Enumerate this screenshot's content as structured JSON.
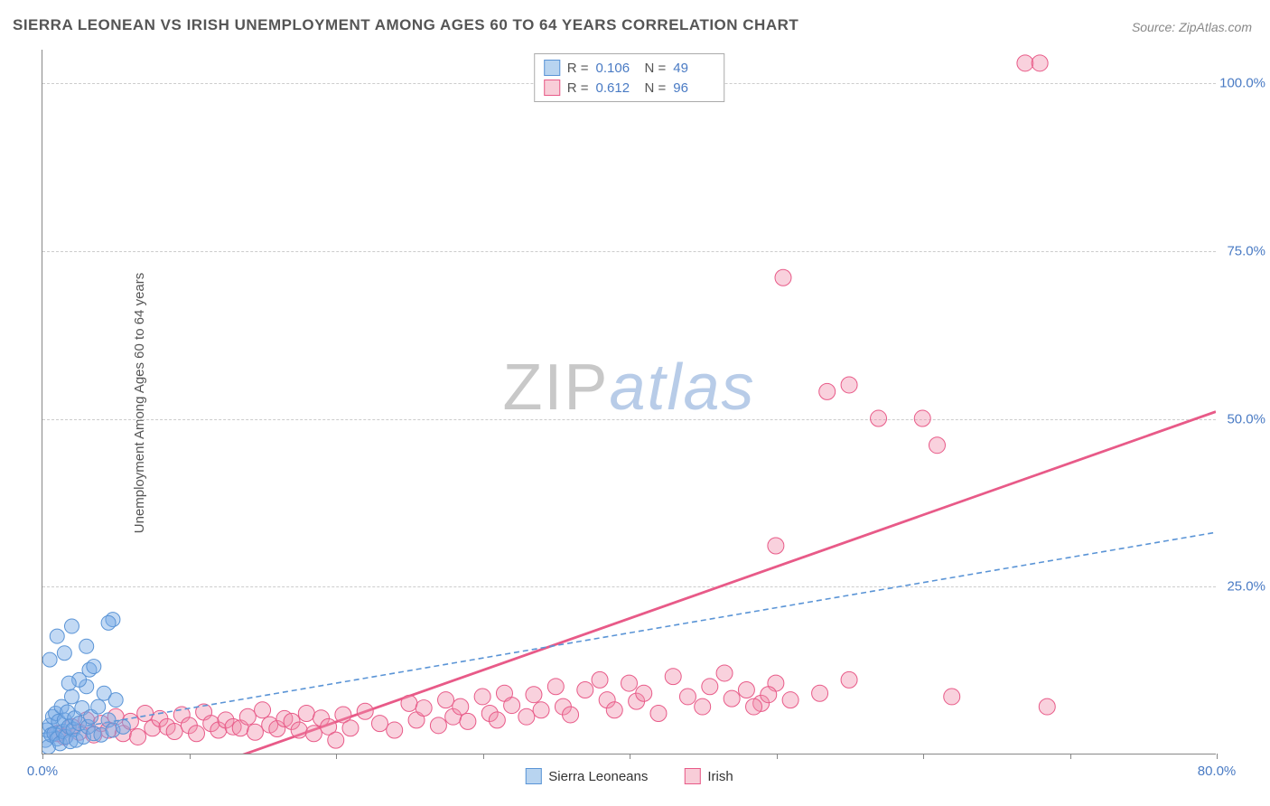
{
  "title": "SIERRA LEONEAN VS IRISH UNEMPLOYMENT AMONG AGES 60 TO 64 YEARS CORRELATION CHART",
  "source": "Source: ZipAtlas.com",
  "ylabel": "Unemployment Among Ages 60 to 64 years",
  "watermark": {
    "part1": "ZIP",
    "part2": "atlas"
  },
  "axes": {
    "xlim": [
      0,
      80
    ],
    "ylim": [
      0,
      105
    ],
    "yticks": [
      25,
      50,
      75,
      100
    ],
    "ytick_labels": [
      "25.0%",
      "50.0%",
      "75.0%",
      "100.0%"
    ],
    "xticks": [
      0,
      10,
      20,
      30,
      40,
      50,
      60,
      70,
      80
    ],
    "xtick_labels_shown": {
      "0": "0.0%",
      "80": "80.0%"
    },
    "grid_color": "#cccccc",
    "tick_label_color": "#4a7bc4"
  },
  "series": {
    "sierra": {
      "label": "Sierra Leoneans",
      "color_fill": "rgba(120,170,230,0.45)",
      "color_stroke": "#5a94d6",
      "swatch_fill": "#b8d4f0",
      "swatch_border": "#5a94d6",
      "R": "0.106",
      "N": "49",
      "marker_r": 8,
      "line": {
        "x1": 0,
        "y1": 3.0,
        "x2": 80,
        "y2": 33.0,
        "dash": "6,4",
        "width": 1.6
      },
      "points": [
        [
          0.2,
          2.0
        ],
        [
          0.3,
          3.5
        ],
        [
          0.4,
          1.0
        ],
        [
          0.5,
          4.2
        ],
        [
          0.6,
          2.8
        ],
        [
          0.7,
          5.5
        ],
        [
          0.8,
          3.0
        ],
        [
          0.9,
          6.0
        ],
        [
          1.0,
          2.2
        ],
        [
          1.1,
          4.8
        ],
        [
          1.2,
          1.5
        ],
        [
          1.3,
          7.0
        ],
        [
          1.4,
          3.3
        ],
        [
          1.5,
          5.0
        ],
        [
          1.6,
          2.5
        ],
        [
          1.7,
          6.2
        ],
        [
          1.8,
          4.0
        ],
        [
          1.9,
          1.8
        ],
        [
          2.0,
          8.5
        ],
        [
          2.1,
          3.6
        ],
        [
          2.2,
          5.3
        ],
        [
          2.3,
          2.0
        ],
        [
          2.5,
          4.5
        ],
        [
          2.7,
          6.8
        ],
        [
          2.8,
          2.5
        ],
        [
          3.0,
          10.0
        ],
        [
          3.1,
          4.0
        ],
        [
          3.2,
          12.5
        ],
        [
          3.3,
          5.5
        ],
        [
          3.5,
          3.0
        ],
        [
          3.8,
          7.0
        ],
        [
          4.0,
          2.8
        ],
        [
          4.2,
          9.0
        ],
        [
          4.5,
          5.0
        ],
        [
          4.8,
          3.5
        ],
        [
          5.0,
          8.0
        ],
        [
          5.5,
          4.0
        ],
        [
          0.5,
          14.0
        ],
        [
          1.0,
          17.5
        ],
        [
          1.5,
          15.0
        ],
        [
          2.0,
          19.0
        ],
        [
          2.5,
          11.0
        ],
        [
          3.0,
          16.0
        ],
        [
          4.8,
          20.0
        ],
        [
          4.5,
          19.5
        ],
        [
          0.8,
          -2.0
        ],
        [
          2.2,
          -1.5
        ],
        [
          3.5,
          13.0
        ],
        [
          1.8,
          10.5
        ]
      ]
    },
    "irish": {
      "label": "Irish",
      "color_fill": "rgba(240,140,170,0.40)",
      "color_stroke": "#e85a88",
      "swatch_fill": "#f8cdd8",
      "swatch_border": "#e85a88",
      "R": "0.612",
      "N": "96",
      "marker_r": 9,
      "line": {
        "x1": 10,
        "y1": -3.0,
        "x2": 80,
        "y2": 51.0,
        "dash": "",
        "width": 2.8
      },
      "points": [
        [
          1.0,
          3.0
        ],
        [
          1.5,
          2.5
        ],
        [
          2.0,
          4.0
        ],
        [
          2.5,
          3.2
        ],
        [
          3.0,
          5.0
        ],
        [
          3.5,
          2.8
        ],
        [
          4.0,
          4.5
        ],
        [
          4.5,
          3.5
        ],
        [
          5.0,
          5.5
        ],
        [
          5.5,
          3.0
        ],
        [
          6.0,
          4.8
        ],
        [
          6.5,
          2.5
        ],
        [
          7.0,
          6.0
        ],
        [
          7.5,
          3.8
        ],
        [
          8.0,
          5.2
        ],
        [
          8.5,
          4.0
        ],
        [
          9.0,
          3.3
        ],
        [
          9.5,
          5.8
        ],
        [
          10.0,
          4.2
        ],
        [
          10.5,
          3.0
        ],
        [
          11.0,
          6.2
        ],
        [
          11.5,
          4.5
        ],
        [
          12.0,
          3.5
        ],
        [
          12.5,
          5.0
        ],
        [
          13.0,
          4.0
        ],
        [
          13.5,
          3.8
        ],
        [
          14.0,
          5.5
        ],
        [
          14.5,
          3.2
        ],
        [
          15.0,
          6.5
        ],
        [
          15.5,
          4.3
        ],
        [
          16.0,
          3.7
        ],
        [
          16.5,
          5.2
        ],
        [
          17.0,
          4.8
        ],
        [
          17.5,
          3.5
        ],
        [
          18.0,
          6.0
        ],
        [
          18.5,
          3.0
        ],
        [
          19.0,
          5.3
        ],
        [
          19.5,
          4.0
        ],
        [
          20.0,
          2.0
        ],
        [
          20.5,
          5.8
        ],
        [
          21.0,
          3.8
        ],
        [
          22.0,
          6.3
        ],
        [
          23.0,
          4.5
        ],
        [
          24.0,
          3.5
        ],
        [
          25.0,
          7.5
        ],
        [
          25.5,
          5.0
        ],
        [
          26.0,
          6.8
        ],
        [
          27.0,
          4.2
        ],
        [
          27.5,
          8.0
        ],
        [
          28.0,
          5.5
        ],
        [
          28.5,
          7.0
        ],
        [
          29.0,
          4.8
        ],
        [
          30.0,
          8.5
        ],
        [
          30.5,
          6.0
        ],
        [
          31.0,
          5.0
        ],
        [
          31.5,
          9.0
        ],
        [
          32.0,
          7.2
        ],
        [
          33.0,
          5.5
        ],
        [
          33.5,
          8.8
        ],
        [
          34.0,
          6.5
        ],
        [
          35.0,
          10.0
        ],
        [
          35.5,
          7.0
        ],
        [
          36.0,
          5.8
        ],
        [
          37.0,
          9.5
        ],
        [
          38.0,
          11.0
        ],
        [
          38.5,
          8.0
        ],
        [
          39.0,
          6.5
        ],
        [
          40.0,
          10.5
        ],
        [
          40.5,
          7.8
        ],
        [
          41.0,
          9.0
        ],
        [
          42.0,
          6.0
        ],
        [
          43.0,
          11.5
        ],
        [
          44.0,
          8.5
        ],
        [
          45.0,
          7.0
        ],
        [
          45.5,
          10.0
        ],
        [
          46.5,
          12.0
        ],
        [
          47.0,
          8.2
        ],
        [
          48.0,
          9.5
        ],
        [
          49.0,
          7.5
        ],
        [
          50.0,
          10.5
        ],
        [
          50.0,
          31.0
        ],
        [
          50.5,
          71.0
        ],
        [
          51.0,
          8.0
        ],
        [
          53.0,
          9.0
        ],
        [
          53.5,
          54.0
        ],
        [
          55.0,
          55.0
        ],
        [
          55.0,
          11.0
        ],
        [
          57.0,
          50.0
        ],
        [
          60.0,
          50.0
        ],
        [
          61.0,
          46.0
        ],
        [
          62.0,
          8.5
        ],
        [
          67.0,
          103.0
        ],
        [
          68.0,
          103.0
        ],
        [
          68.5,
          7.0
        ],
        [
          48.5,
          7.0
        ],
        [
          49.5,
          8.8
        ]
      ]
    }
  },
  "stats_labels": {
    "R": "R =",
    "N": "N ="
  }
}
